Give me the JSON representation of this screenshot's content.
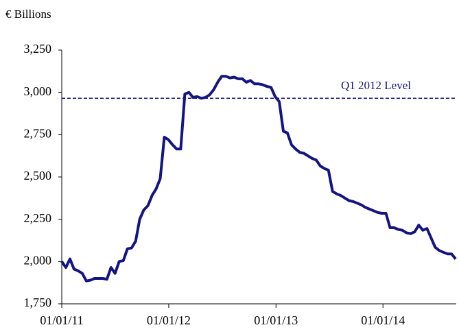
{
  "chart_data": {
    "type": "line",
    "y_label": "€ Billions",
    "x": [
      "01/01/11",
      "15/01/11",
      "29/01/11",
      "12/02/11",
      "26/02/11",
      "12/03/11",
      "26/03/11",
      "09/04/11",
      "23/04/11",
      "07/05/11",
      "21/05/11",
      "04/06/11",
      "18/06/11",
      "02/07/11",
      "16/07/11",
      "30/07/11",
      "13/08/11",
      "27/08/11",
      "10/09/11",
      "24/09/11",
      "08/10/11",
      "22/10/11",
      "05/11/11",
      "19/11/11",
      "03/12/11",
      "17/12/11",
      "31/12/11",
      "14/01/12",
      "28/01/12",
      "11/02/12",
      "25/02/12",
      "10/03/12",
      "24/03/12",
      "07/04/12",
      "21/04/12",
      "05/05/12",
      "19/05/12",
      "02/06/12",
      "16/06/12",
      "30/06/12",
      "14/07/12",
      "28/07/12",
      "11/08/12",
      "25/08/12",
      "08/09/12",
      "22/09/12",
      "06/10/12",
      "20/10/12",
      "03/11/12",
      "17/11/12",
      "01/12/12",
      "15/12/12",
      "29/12/12",
      "12/01/13",
      "26/01/13",
      "09/02/13",
      "23/02/13",
      "09/03/13",
      "23/03/13",
      "06/04/13",
      "20/04/13",
      "04/05/13",
      "18/05/13",
      "01/06/13",
      "15/06/13",
      "29/06/13",
      "13/07/13",
      "27/07/13",
      "10/08/13",
      "24/08/13",
      "07/09/13",
      "21/09/13",
      "05/10/13",
      "19/10/13",
      "02/11/13",
      "16/11/13",
      "30/11/13",
      "14/12/13",
      "28/12/13",
      "11/01/14",
      "25/01/14",
      "08/02/14",
      "22/02/14",
      "08/03/14",
      "22/03/14",
      "05/04/14",
      "19/04/14",
      "03/05/14",
      "17/05/14",
      "31/05/14",
      "14/06/14",
      "28/06/14",
      "12/07/14",
      "26/07/14",
      "09/08/14",
      "23/08/14",
      "06/09/14"
    ],
    "series": [
      {
        "color": "#141482",
        "values": [
          2000,
          1965,
          2015,
          1955,
          1945,
          1930,
          1885,
          1890,
          1900,
          1900,
          1900,
          1895,
          1965,
          1930,
          2000,
          2005,
          2075,
          2080,
          2120,
          2250,
          2305,
          2330,
          2390,
          2430,
          2490,
          2735,
          2720,
          2690,
          2665,
          2665,
          2990,
          3000,
          2970,
          2975,
          2965,
          2970,
          2985,
          3015,
          3060,
          3095,
          3095,
          3085,
          3090,
          3080,
          3080,
          3060,
          3070,
          3050,
          3050,
          3045,
          3035,
          3030,
          2975,
          2945,
          2770,
          2760,
          2690,
          2665,
          2645,
          2640,
          2625,
          2610,
          2600,
          2565,
          2550,
          2540,
          2415,
          2400,
          2390,
          2375,
          2360,
          2355,
          2345,
          2335,
          2320,
          2310,
          2300,
          2290,
          2285,
          2285,
          2200,
          2200,
          2190,
          2185,
          2170,
          2165,
          2175,
          2215,
          2185,
          2195,
          2140,
          2085,
          2065,
          2055,
          2045,
          2045,
          2015
        ]
      }
    ],
    "xlim": [
      "01/01/11",
      "08/09/14"
    ],
    "xticks": [
      "01/01/11",
      "01/01/12",
      "01/01/13",
      "01/01/14"
    ],
    "ylim": [
      1750,
      3250
    ],
    "yticks": [
      {
        "value": 1750,
        "label": "1,750"
      },
      {
        "value": 2000,
        "label": "2,000"
      },
      {
        "value": 2250,
        "label": "2,250"
      },
      {
        "value": 2500,
        "label": "2,500"
      },
      {
        "value": 2750,
        "label": "2,750"
      },
      {
        "value": 3000,
        "label": "3,000"
      },
      {
        "value": 3250,
        "label": "3,250"
      }
    ],
    "reference_line": {
      "label": "Q1 2012 Level",
      "value": 2965,
      "color": "#141482"
    }
  }
}
